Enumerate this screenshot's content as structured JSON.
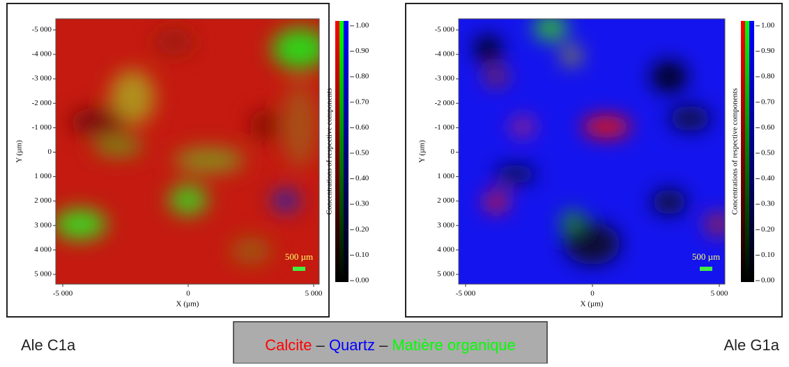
{
  "panels": [
    {
      "caption": "Ale C1a",
      "x_label": "X (µm)",
      "y_label": "Y (µm)",
      "colorbar_label": "Concentrations of respective components",
      "scale_bar": "500 µm",
      "x_ticks": [
        "-5 000",
        "0",
        "5 000"
      ],
      "y_ticks": [
        "-5 000",
        "-4 000",
        "-3 000",
        "-2 000",
        "-1 000",
        "0",
        "1 000",
        "2 000",
        "3 000",
        "4 000",
        "5 000"
      ],
      "colorbar_ticks": [
        "1.00",
        "0.90",
        "0.80",
        "0.70",
        "0.60",
        "0.50",
        "0.40",
        "0.30",
        "0.20",
        "0.10",
        "0.00"
      ]
    },
    {
      "caption": "Ale G1a",
      "x_label": "X (µm)",
      "y_label": "Y (µm)",
      "colorbar_label": "Concentrations of respective components",
      "scale_bar": "500 µm",
      "x_ticks": [
        "-5 000",
        "0",
        "5 000"
      ],
      "y_ticks": [
        "-5 000",
        "-4 000",
        "-3 000",
        "-2 000",
        "-1 000",
        "0",
        "1 000",
        "2 000",
        "3 000",
        "4 000",
        "5 000"
      ],
      "colorbar_ticks": [
        "1.00",
        "0.90",
        "0.80",
        "0.70",
        "0.60",
        "0.50",
        "0.40",
        "0.30",
        "0.20",
        "0.10",
        "0.00"
      ]
    }
  ],
  "legend": {
    "separator": "–",
    "items": [
      {
        "label": "Calcite",
        "color": "#ff0000"
      },
      {
        "label": "Quartz",
        "color": "#0000ff"
      },
      {
        "label": "Matière organique",
        "color": "#00ff00"
      }
    ]
  }
}
